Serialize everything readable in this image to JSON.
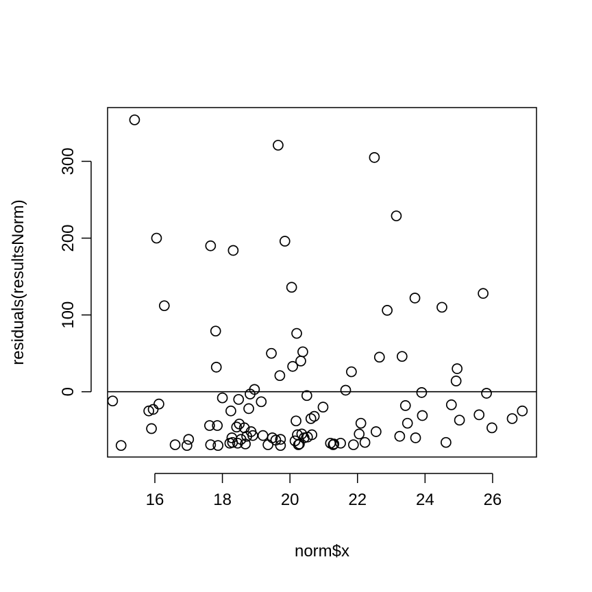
{
  "chart_data": {
    "type": "scatter",
    "title": "",
    "xlabel": "norm$x",
    "ylabel": "residuals(resultsNorm)",
    "xlim": [
      14.6,
      27.3
    ],
    "ylim": [
      -85,
      370
    ],
    "xticks": [
      16,
      18,
      20,
      22,
      24,
      26
    ],
    "yticks": [
      0,
      100,
      200,
      300
    ],
    "hline": 0,
    "grid": false,
    "legend": "none",
    "colors": {
      "points": "#000000",
      "axes": "#000000",
      "background": "#ffffff"
    },
    "series": [
      {
        "x": [
          14.75,
          15.0,
          15.4,
          15.82,
          15.9,
          15.95,
          16.05,
          16.12,
          16.28,
          16.6,
          16.95,
          17.0,
          17.62,
          17.65,
          17.65,
          17.8,
          17.82,
          17.85,
          17.87,
          18.0,
          18.22,
          18.25,
          18.28,
          18.3,
          18.32,
          18.42,
          18.45,
          18.48,
          18.5,
          18.55,
          18.65,
          18.68,
          18.72,
          18.78,
          18.82,
          18.85,
          18.9,
          18.95,
          19.15,
          19.2,
          19.35,
          19.45,
          19.48,
          19.58,
          19.65,
          19.7,
          19.72,
          19.72,
          19.85,
          20.05,
          20.08,
          20.15,
          20.18,
          20.2,
          20.22,
          20.25,
          20.28,
          20.32,
          20.35,
          20.38,
          20.42,
          20.5,
          20.52,
          20.62,
          20.65,
          20.72,
          20.98,
          21.2,
          21.28,
          21.3,
          21.5,
          21.65,
          21.82,
          21.88,
          22.05,
          22.1,
          22.22,
          22.5,
          22.55,
          22.65,
          22.88,
          23.15,
          23.25,
          23.32,
          23.42,
          23.48,
          23.7,
          23.72,
          23.9,
          23.92,
          24.5,
          24.62,
          24.78,
          24.92,
          24.95,
          25.02,
          25.6,
          25.72,
          25.82,
          25.98,
          26.58,
          26.88
        ],
        "y": [
          -12,
          -70,
          354,
          -25,
          -48,
          -23,
          200,
          -16,
          112,
          -69,
          -70,
          -62,
          -44,
          -69,
          190,
          79,
          32,
          -44,
          -70,
          -8,
          -67,
          -25,
          -60,
          -66,
          184,
          -46,
          -67,
          -10,
          -42,
          -62,
          -47,
          -68,
          -58,
          -22,
          -3,
          -52,
          -57,
          3,
          -13,
          -57,
          -69,
          50,
          -60,
          -63,
          321,
          21,
          -62,
          -70,
          196,
          136,
          33,
          -64,
          -38,
          76,
          -56,
          -69,
          -68,
          40,
          -55,
          52,
          -60,
          -5,
          -59,
          -35,
          -56,
          -32,
          -20,
          -67,
          -69,
          -68,
          -67,
          2,
          26,
          -69,
          -55,
          -41,
          -66,
          305,
          -52,
          45,
          106,
          229,
          -58,
          46,
          -18,
          -41,
          122,
          -60,
          -1,
          -31,
          110,
          -66,
          -17,
          14,
          30,
          -37,
          -30,
          128,
          -2,
          -47,
          -35,
          -25
        ]
      }
    ]
  }
}
